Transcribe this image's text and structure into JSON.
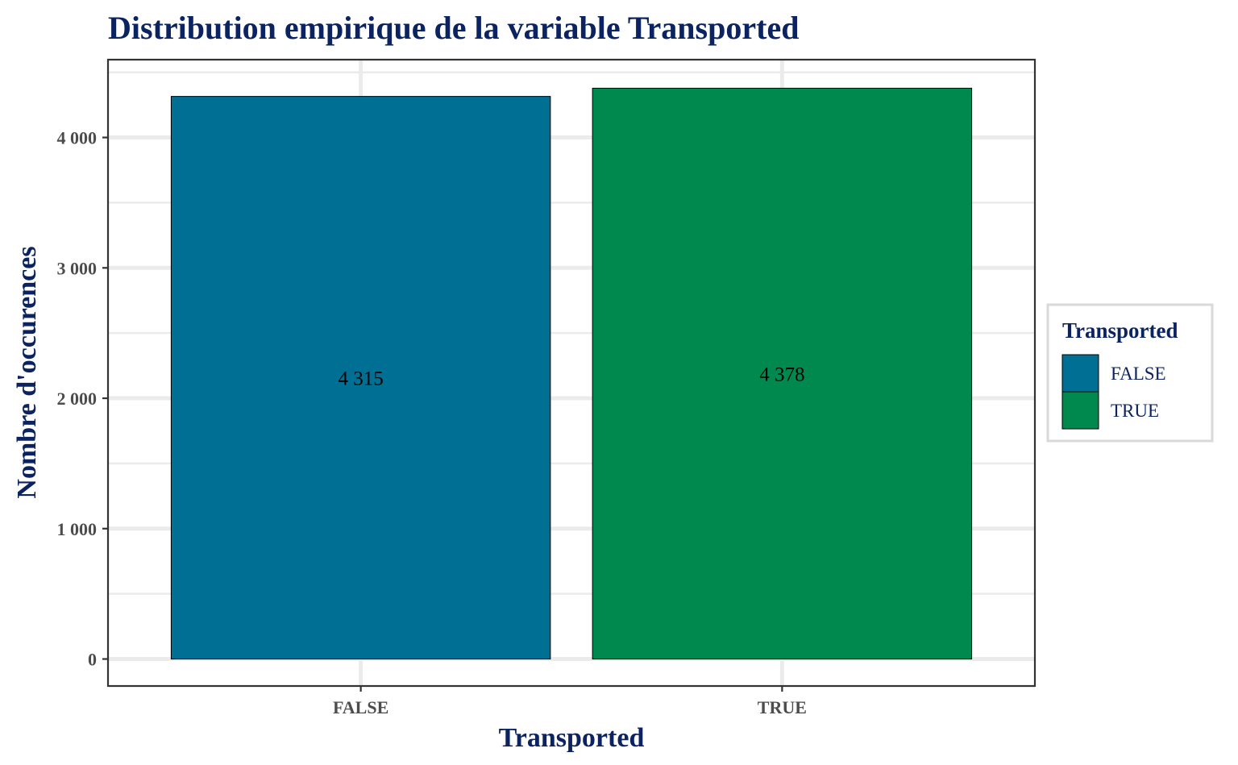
{
  "chart_data": {
    "type": "bar",
    "title": "Distribution empirique de la variable Transported",
    "xlabel": "Transported",
    "ylabel": "Nombre d'occurences",
    "categories": [
      "FALSE",
      "TRUE"
    ],
    "values": [
      4315,
      4378
    ],
    "data_labels": [
      "4 315",
      "4 378"
    ],
    "colors": [
      "#006f94",
      "#00894f"
    ],
    "yticks": [
      0,
      1000,
      2000,
      3000,
      4000
    ],
    "ytick_labels": [
      "0",
      "1 000",
      "2 000",
      "3 000",
      "4 000"
    ],
    "ylim": [
      -207,
      4597
    ],
    "grid": true,
    "legend": {
      "title": "Transported",
      "position": "right",
      "entries": [
        {
          "label": "FALSE",
          "color": "#006f94"
        },
        {
          "label": "TRUE",
          "color": "#00894f"
        }
      ]
    }
  }
}
